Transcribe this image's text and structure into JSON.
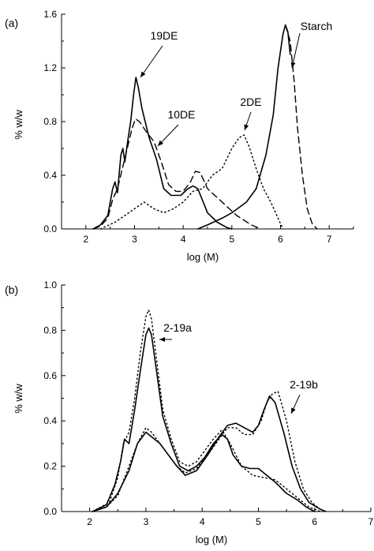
{
  "chart_data": [
    {
      "panel": "(a)",
      "type": "line",
      "xlabel": "log (M)",
      "ylabel": "% w/w",
      "xlim": [
        1.5,
        7.5
      ],
      "ylim": [
        0,
        1.6
      ],
      "xticks": [
        "2",
        "3",
        "4",
        "5",
        "6",
        "7"
      ],
      "yticks": [
        "0.0",
        "0.4",
        "0.8",
        "1.2",
        "1.6"
      ],
      "grid": false,
      "series": [
        {
          "name": "19DE",
          "style": "solid",
          "points": [
            [
              2.15,
              0
            ],
            [
              2.3,
              0.03
            ],
            [
              2.45,
              0.1
            ],
            [
              2.55,
              0.3
            ],
            [
              2.6,
              0.35
            ],
            [
              2.65,
              0.27
            ],
            [
              2.72,
              0.55
            ],
            [
              2.76,
              0.6
            ],
            [
              2.8,
              0.5
            ],
            [
              2.87,
              0.68
            ],
            [
              2.92,
              0.8
            ],
            [
              2.98,
              1.0
            ],
            [
              3.03,
              1.13
            ],
            [
              3.08,
              1.05
            ],
            [
              3.15,
              0.9
            ],
            [
              3.3,
              0.68
            ],
            [
              3.45,
              0.52
            ],
            [
              3.6,
              0.3
            ],
            [
              3.75,
              0.25
            ],
            [
              3.95,
              0.25
            ],
            [
              4.1,
              0.3
            ],
            [
              4.2,
              0.32
            ],
            [
              4.3,
              0.3
            ],
            [
              4.5,
              0.12
            ],
            [
              4.7,
              0.05
            ],
            [
              4.9,
              0.01
            ],
            [
              5.0,
              0
            ]
          ]
        },
        {
          "name": "10DE",
          "style": "dashed",
          "points": [
            [
              2.15,
              0
            ],
            [
              2.3,
              0.02
            ],
            [
              2.45,
              0.08
            ],
            [
              2.55,
              0.22
            ],
            [
              2.65,
              0.3
            ],
            [
              2.75,
              0.45
            ],
            [
              2.85,
              0.6
            ],
            [
              2.95,
              0.75
            ],
            [
              3.02,
              0.82
            ],
            [
              3.1,
              0.8
            ],
            [
              3.25,
              0.72
            ],
            [
              3.4,
              0.65
            ],
            [
              3.55,
              0.5
            ],
            [
              3.7,
              0.33
            ],
            [
              3.85,
              0.28
            ],
            [
              4.0,
              0.28
            ],
            [
              4.15,
              0.35
            ],
            [
              4.25,
              0.43
            ],
            [
              4.35,
              0.42
            ],
            [
              4.5,
              0.3
            ],
            [
              4.8,
              0.2
            ],
            [
              5.1,
              0.1
            ],
            [
              5.4,
              0.03
            ],
            [
              5.6,
              0
            ]
          ]
        },
        {
          "name": "2DE",
          "style": "dotted",
          "points": [
            [
              2.3,
              0
            ],
            [
              2.6,
              0.05
            ],
            [
              2.8,
              0.1
            ],
            [
              3.0,
              0.15
            ],
            [
              3.2,
              0.2
            ],
            [
              3.4,
              0.15
            ],
            [
              3.6,
              0.12
            ],
            [
              3.8,
              0.15
            ],
            [
              4.0,
              0.2
            ],
            [
              4.2,
              0.28
            ],
            [
              4.4,
              0.3
            ],
            [
              4.6,
              0.4
            ],
            [
              4.8,
              0.45
            ],
            [
              5.0,
              0.6
            ],
            [
              5.15,
              0.68
            ],
            [
              5.25,
              0.7
            ],
            [
              5.35,
              0.62
            ],
            [
              5.5,
              0.45
            ],
            [
              5.65,
              0.3
            ],
            [
              5.8,
              0.2
            ],
            [
              5.95,
              0.08
            ],
            [
              6.05,
              0
            ]
          ]
        },
        {
          "name": "Starch",
          "style": "solid",
          "points": [
            [
              4.3,
              0
            ],
            [
              4.5,
              0.03
            ],
            [
              4.8,
              0.08
            ],
            [
              5.0,
              0.12
            ],
            [
              5.3,
              0.2
            ],
            [
              5.5,
              0.3
            ],
            [
              5.7,
              0.55
            ],
            [
              5.85,
              0.85
            ],
            [
              5.95,
              1.2
            ],
            [
              6.05,
              1.45
            ],
            [
              6.1,
              1.52
            ],
            [
              6.15,
              1.47
            ],
            [
              6.2,
              1.3
            ]
          ]
        },
        {
          "name": "Starch",
          "style": "dashed",
          "points": [
            [
              6.1,
              1.52
            ],
            [
              6.2,
              1.4
            ],
            [
              6.28,
              1.1
            ],
            [
              6.35,
              0.75
            ],
            [
              6.45,
              0.4
            ],
            [
              6.55,
              0.15
            ],
            [
              6.65,
              0.04
            ],
            [
              6.75,
              0
            ]
          ]
        }
      ],
      "annotations": [
        "19DE",
        "10DE",
        "2DE",
        "Starch"
      ]
    },
    {
      "panel": "(b)",
      "type": "line",
      "xlabel": "log (M)",
      "ylabel": "% w/w",
      "xlim": [
        1.5,
        7
      ],
      "ylim": [
        0,
        1.0
      ],
      "xticks": [
        "2",
        "3",
        "4",
        "5",
        "6",
        "7"
      ],
      "yticks": [
        "0.0",
        "0.2",
        "0.4",
        "0.6",
        "0.8",
        "1.0"
      ],
      "grid": false,
      "series": [
        {
          "name": "2-19a",
          "style": "solid",
          "points": [
            [
              2.05,
              0
            ],
            [
              2.3,
              0.03
            ],
            [
              2.45,
              0.12
            ],
            [
              2.55,
              0.22
            ],
            [
              2.62,
              0.32
            ],
            [
              2.7,
              0.3
            ],
            [
              2.8,
              0.45
            ],
            [
              2.9,
              0.62
            ],
            [
              3.0,
              0.78
            ],
            [
              3.05,
              0.81
            ],
            [
              3.1,
              0.78
            ],
            [
              3.2,
              0.6
            ],
            [
              3.3,
              0.42
            ],
            [
              3.45,
              0.3
            ],
            [
              3.6,
              0.2
            ],
            [
              3.75,
              0.18
            ],
            [
              3.9,
              0.2
            ],
            [
              4.05,
              0.24
            ],
            [
              4.2,
              0.3
            ],
            [
              4.35,
              0.34
            ],
            [
              4.45,
              0.32
            ],
            [
              4.55,
              0.25
            ],
            [
              4.7,
              0.2
            ],
            [
              4.85,
              0.19
            ],
            [
              5.0,
              0.19
            ],
            [
              5.15,
              0.16
            ],
            [
              5.3,
              0.13
            ],
            [
              5.5,
              0.08
            ],
            [
              5.7,
              0.05
            ],
            [
              5.85,
              0.02
            ],
            [
              6.0,
              0
            ]
          ]
        },
        {
          "name": "2-19a",
          "style": "dotted",
          "points": [
            [
              2.05,
              0
            ],
            [
              2.35,
              0.04
            ],
            [
              2.5,
              0.15
            ],
            [
              2.6,
              0.3
            ],
            [
              2.7,
              0.35
            ],
            [
              2.8,
              0.5
            ],
            [
              2.9,
              0.7
            ],
            [
              3.0,
              0.86
            ],
            [
              3.05,
              0.89
            ],
            [
              3.1,
              0.85
            ],
            [
              3.2,
              0.65
            ],
            [
              3.3,
              0.45
            ],
            [
              3.45,
              0.32
            ],
            [
              3.6,
              0.22
            ],
            [
              3.75,
              0.2
            ],
            [
              3.9,
              0.22
            ],
            [
              4.05,
              0.27
            ],
            [
              4.2,
              0.32
            ],
            [
              4.35,
              0.36
            ],
            [
              4.5,
              0.3
            ],
            [
              4.7,
              0.2
            ],
            [
              4.9,
              0.16
            ],
            [
              5.1,
              0.15
            ],
            [
              5.3,
              0.14
            ],
            [
              5.5,
              0.1
            ],
            [
              5.7,
              0.06
            ],
            [
              5.9,
              0.02
            ],
            [
              6.1,
              0
            ]
          ]
        },
        {
          "name": "2-19b",
          "style": "solid",
          "points": [
            [
              2.05,
              0
            ],
            [
              2.3,
              0.02
            ],
            [
              2.5,
              0.08
            ],
            [
              2.7,
              0.18
            ],
            [
              2.85,
              0.3
            ],
            [
              3.0,
              0.35
            ],
            [
              3.1,
              0.33
            ],
            [
              3.25,
              0.3
            ],
            [
              3.4,
              0.25
            ],
            [
              3.55,
              0.2
            ],
            [
              3.7,
              0.16
            ],
            [
              3.9,
              0.18
            ],
            [
              4.1,
              0.25
            ],
            [
              4.3,
              0.33
            ],
            [
              4.45,
              0.38
            ],
            [
              4.6,
              0.39
            ],
            [
              4.75,
              0.37
            ],
            [
              4.9,
              0.35
            ],
            [
              5.0,
              0.38
            ],
            [
              5.1,
              0.45
            ],
            [
              5.2,
              0.51
            ],
            [
              5.3,
              0.48
            ],
            [
              5.45,
              0.35
            ],
            [
              5.6,
              0.2
            ],
            [
              5.75,
              0.1
            ],
            [
              5.9,
              0.04
            ],
            [
              6.1,
              0.01
            ],
            [
              6.2,
              0
            ]
          ]
        },
        {
          "name": "2-19b",
          "style": "dotted",
          "points": [
            [
              2.05,
              0
            ],
            [
              2.3,
              0.02
            ],
            [
              2.5,
              0.07
            ],
            [
              2.7,
              0.2
            ],
            [
              2.85,
              0.3
            ],
            [
              3.0,
              0.37
            ],
            [
              3.1,
              0.35
            ],
            [
              3.25,
              0.3
            ],
            [
              3.4,
              0.25
            ],
            [
              3.55,
              0.2
            ],
            [
              3.7,
              0.17
            ],
            [
              3.9,
              0.19
            ],
            [
              4.1,
              0.25
            ],
            [
              4.3,
              0.32
            ],
            [
              4.45,
              0.37
            ],
            [
              4.6,
              0.37
            ],
            [
              4.75,
              0.34
            ],
            [
              4.9,
              0.34
            ],
            [
              5.05,
              0.4
            ],
            [
              5.15,
              0.48
            ],
            [
              5.25,
              0.52
            ],
            [
              5.35,
              0.53
            ],
            [
              5.5,
              0.4
            ],
            [
              5.65,
              0.22
            ],
            [
              5.8,
              0.1
            ],
            [
              5.95,
              0.04
            ],
            [
              6.1,
              0.01
            ],
            [
              6.2,
              0
            ]
          ]
        }
      ],
      "annotations": [
        "2-19a",
        "2-19b"
      ]
    }
  ]
}
